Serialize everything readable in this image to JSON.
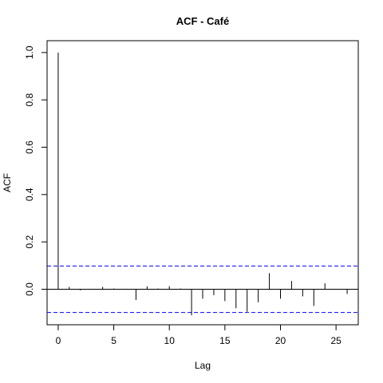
{
  "chart_data": {
    "type": "bar",
    "title": "ACF - Café",
    "xlabel": "Lag",
    "ylabel": "ACF",
    "xlim": [
      -1,
      27
    ],
    "ylim": [
      -0.15,
      1.05
    ],
    "x_ticks": [
      0,
      5,
      10,
      15,
      20,
      25
    ],
    "y_ticks": [
      0.0,
      0.2,
      0.4,
      0.6,
      0.8,
      1.0
    ],
    "y_tick_labels": [
      "0.0",
      "0.2",
      "0.4",
      "0.6",
      "0.8",
      "1.0"
    ],
    "x": [
      0,
      1,
      2,
      3,
      4,
      5,
      6,
      7,
      8,
      9,
      10,
      11,
      12,
      13,
      14,
      15,
      16,
      17,
      18,
      19,
      20,
      21,
      22,
      23,
      24,
      25,
      26
    ],
    "values": [
      1.0,
      0.01,
      -0.005,
      0.0,
      0.01,
      0.003,
      0.002,
      -0.045,
      0.012,
      0.003,
      0.013,
      0.003,
      -0.11,
      -0.04,
      -0.025,
      -0.05,
      -0.08,
      -0.095,
      -0.055,
      0.068,
      -0.04,
      0.035,
      -0.03,
      -0.07,
      0.025,
      0.002,
      -0.02
    ],
    "confidence_bound": 0.098,
    "grid": false,
    "colors": {
      "bars": "#000000",
      "zero_line": "#000000",
      "confidence": "#0000ff"
    }
  }
}
